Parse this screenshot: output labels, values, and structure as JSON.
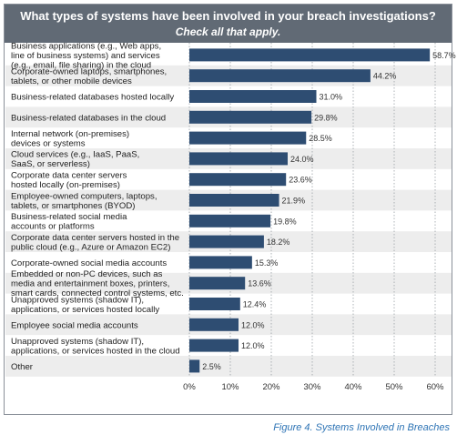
{
  "header": {
    "title": "What types of systems have been involved in your breach investigations?",
    "subtitle": "Check all that apply."
  },
  "caption": "Figure 4. Systems Involved in Breaches",
  "colors": {
    "bar": "#2e4d72",
    "header": "#616a75",
    "stripe": "#ededed",
    "caption": "#2e74b5"
  },
  "chart_data": {
    "type": "bar",
    "orientation": "horizontal",
    "title": "What types of systems have been involved in your breach investigations?",
    "subtitle": "Check all that apply.",
    "categories": [
      [
        "Business applications (e.g., Web apps,",
        "line of business systems) and services",
        "(e.g., email, file sharing) in the cloud"
      ],
      [
        "Corporate-owned laptops, smartphones,",
        "tablets, or other mobile devices"
      ],
      [
        "Business-related databases hosted locally"
      ],
      [
        "Business-related databases in the cloud"
      ],
      [
        "Internal network (on-premises)",
        "devices or systems"
      ],
      [
        "Cloud services (e.g., IaaS, PaaS,",
        "SaaS, or serverless)"
      ],
      [
        "Corporate data center servers",
        "hosted locally (on-premises)"
      ],
      [
        "Employee-owned computers, laptops,",
        "tablets, or smartphones (BYOD)"
      ],
      [
        "Business-related social media",
        "accounts or platforms"
      ],
      [
        "Corporate data center servers hosted in the",
        "public cloud (e.g., Azure or Amazon EC2)"
      ],
      [
        "Corporate-owned social media accounts"
      ],
      [
        "Embedded or non-PC devices, such as",
        "media and entertainment boxes, printers,",
        "smart cards, connected control systems, etc."
      ],
      [
        "Unapproved systems (shadow IT),",
        "applications, or services hosted locally"
      ],
      [
        "Employee social media accounts"
      ],
      [
        "Unapproved systems (shadow IT),",
        "applications, or services hosted in the cloud"
      ],
      [
        "Other"
      ]
    ],
    "values": [
      58.7,
      44.2,
      31.0,
      29.8,
      28.5,
      24.0,
      23.6,
      21.9,
      19.8,
      18.2,
      15.3,
      13.6,
      12.4,
      12.0,
      12.0,
      2.5
    ],
    "value_labels": [
      "58.7%",
      "44.2%",
      "31.0%",
      "29.8%",
      "28.5%",
      "24.0%",
      "23.6%",
      "21.9%",
      "19.8%",
      "18.2%",
      "15.3%",
      "13.6%",
      "12.4%",
      "12.0%",
      "12.0%",
      "2.5%"
    ],
    "xlim": [
      0,
      60
    ],
    "xticks": [
      0,
      10,
      20,
      30,
      40,
      50,
      60
    ],
    "xtick_labels": [
      "0%",
      "10%",
      "20%",
      "30%",
      "40%",
      "50%",
      "60%"
    ],
    "grid": "vertical dotted",
    "legend": "none"
  }
}
